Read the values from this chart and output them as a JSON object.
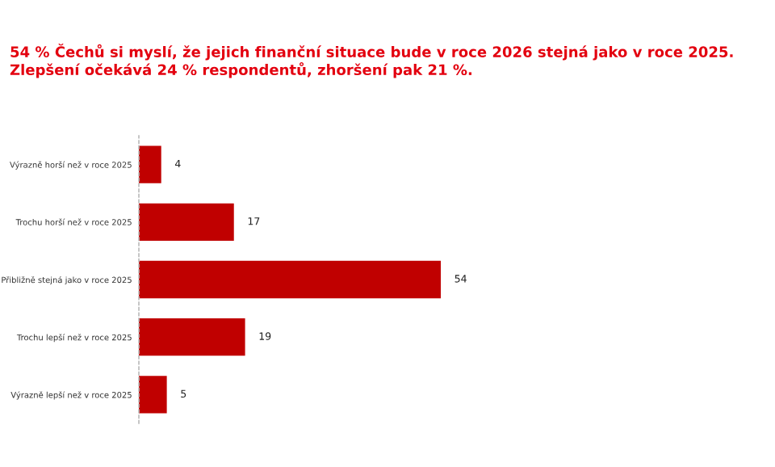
{
  "chart_data": {
    "type": "bar",
    "orientation": "horizontal",
    "title": "54 % Čechů si myslí, že jejich finanční situace bude v roce 2026 stejná jako v roce 2025.\nZlepšení očekává 24 % respondentů, zhoršení pak 21 %.",
    "categories": [
      "Výrazně horší než v roce 2025",
      "Trochu horší než v roce 2025",
      "Přibližně stejná jako v roce 2025",
      "Trochu lepší než v roce 2025",
      "Výrazně lepší než v roce 2025"
    ],
    "values": [
      4,
      17,
      54,
      19,
      5
    ],
    "color": "#c00000",
    "data_labels": true,
    "grid": false,
    "legend": false
  }
}
